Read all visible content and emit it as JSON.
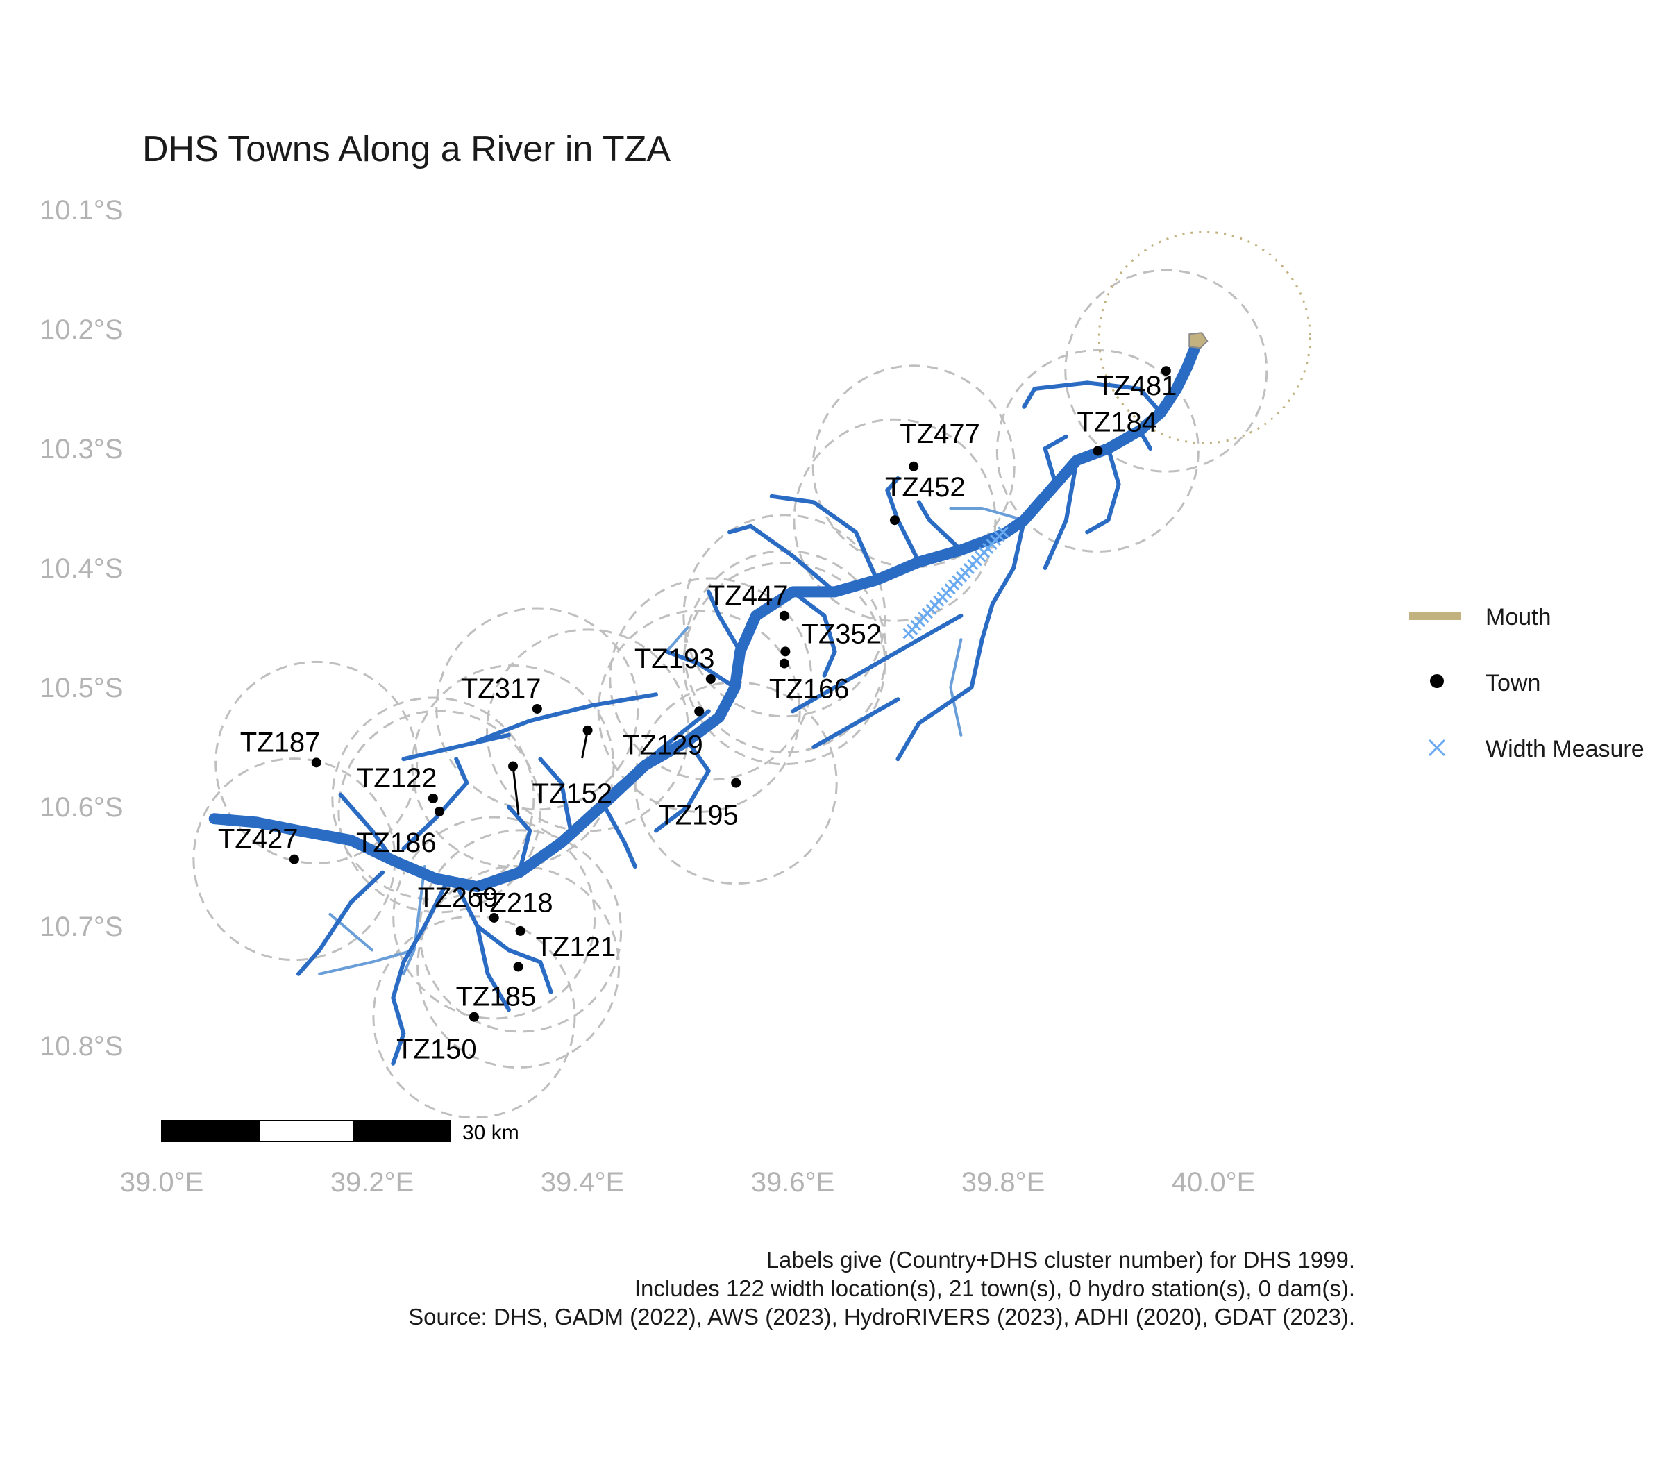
{
  "map": {
    "title": "DHS Towns Along a River in TZA",
    "lat_labels": [
      "10.1°S",
      "10.2°S",
      "10.3°S",
      "10.4°S",
      "10.5°S",
      "10.6°S",
      "10.7°S",
      "10.8°S"
    ],
    "lon_labels": [
      "39.0°E",
      "39.2°E",
      "39.4°E",
      "39.6°E",
      "39.8°E",
      "40.0°E"
    ],
    "scale_bar_label": "30 km",
    "legend": {
      "mouth": "Mouth",
      "town": "Town",
      "width": "Width Measure"
    },
    "caption_lines": [
      "Labels give (Country+DHS cluster number) for DHS 1999.",
      "Includes 122 width location(s), 21 town(s), 0 hydro station(s), 0 dam(s).",
      "Source: DHS, GADM (2022), AWS (2023), HydroRIVERS (2023), ADHI (2020), GDAT (2023)."
    ],
    "colors": {
      "river_main": "#2a6bc4",
      "river_trib": "#6a9ed8",
      "width_measure": "#6aaaf0",
      "mouth": "#c2b280",
      "town": "#000000",
      "buffer": "#bfbfbf",
      "axis_text": "#b3b3b3"
    }
  },
  "towns": [
    {
      "label": "TZ481",
      "lon": 39.955,
      "lat": -10.235
    },
    {
      "label": "TZ184",
      "lon": 39.89,
      "lat": -10.302
    },
    {
      "label": "TZ477",
      "lon": 39.715,
      "lat": -10.315
    },
    {
      "label": "TZ452",
      "lon": 39.697,
      "lat": -10.36
    },
    {
      "label": "TZ447",
      "lon": 39.592,
      "lat": -10.44
    },
    {
      "label": "TZ352",
      "lon": 39.593,
      "lat": -10.47
    },
    {
      "label": "TZ166",
      "lon": 39.592,
      "lat": -10.48
    },
    {
      "label": "TZ193",
      "lon": 39.522,
      "lat": -10.493
    },
    {
      "label": "TZ129",
      "lon": 39.511,
      "lat": -10.52
    },
    {
      "label": "TZ195",
      "lon": 39.546,
      "lat": -10.58
    },
    {
      "label": "TZ317",
      "lon": 39.357,
      "lat": -10.518
    },
    {
      "label": "TZ152",
      "lon": 39.405,
      "lat": -10.536
    },
    {
      "label": "TZ218",
      "lon": 39.334,
      "lat": -10.566
    },
    {
      "label": "TZ187",
      "lon": 39.147,
      "lat": -10.563
    },
    {
      "label": "TZ122",
      "lon": 39.258,
      "lat": -10.593
    },
    {
      "label": "TZ186",
      "lon": 39.264,
      "lat": -10.604
    },
    {
      "label": "TZ427",
      "lon": 39.126,
      "lat": -10.644
    },
    {
      "label": "TZ269",
      "lon": 39.316,
      "lat": -10.693
    },
    {
      "label": "TZ121",
      "lon": 39.341,
      "lat": -10.704
    },
    {
      "label": "TZ185",
      "lon": 39.339,
      "lat": -10.734
    },
    {
      "label": "TZ150",
      "lon": 39.297,
      "lat": -10.776
    }
  ],
  "rivers": {
    "main": [
      [
        39.05,
        -10.61
      ],
      [
        39.09,
        -10.613
      ],
      [
        39.13,
        -10.62
      ],
      [
        39.18,
        -10.628
      ],
      [
        39.22,
        -10.645
      ],
      [
        39.26,
        -10.66
      ],
      [
        39.3,
        -10.667
      ],
      [
        39.34,
        -10.655
      ],
      [
        39.38,
        -10.63
      ],
      [
        39.42,
        -10.598
      ],
      [
        39.46,
        -10.565
      ],
      [
        39.5,
        -10.545
      ],
      [
        39.53,
        -10.525
      ],
      [
        39.545,
        -10.5
      ],
      [
        39.55,
        -10.47
      ],
      [
        39.565,
        -10.44
      ],
      [
        39.6,
        -10.42
      ],
      [
        39.64,
        -10.42
      ],
      [
        39.68,
        -10.41
      ],
      [
        39.72,
        -10.395
      ],
      [
        39.76,
        -10.385
      ],
      [
        39.8,
        -10.372
      ],
      [
        39.82,
        -10.36
      ],
      [
        39.85,
        -10.33
      ],
      [
        39.87,
        -10.31
      ],
      [
        39.9,
        -10.3
      ],
      [
        39.93,
        -10.285
      ],
      [
        39.95,
        -10.27
      ],
      [
        39.965,
        -10.25
      ],
      [
        39.975,
        -10.232
      ],
      [
        39.985,
        -10.21
      ]
    ],
    "tributaries": [
      [
        [
          39.22,
          -10.645
        ],
        [
          39.2,
          -10.62
        ],
        [
          39.17,
          -10.59
        ]
      ],
      [
        [
          39.23,
          -10.635
        ],
        [
          39.26,
          -10.61
        ],
        [
          39.29,
          -10.58
        ],
        [
          39.28,
          -10.56
        ]
      ],
      [
        [
          39.28,
          -10.665
        ],
        [
          39.3,
          -10.7
        ],
        [
          39.33,
          -10.72
        ],
        [
          39.36,
          -10.73
        ],
        [
          39.37,
          -10.755
        ]
      ],
      [
        [
          39.27,
          -10.665
        ],
        [
          39.25,
          -10.7
        ],
        [
          39.23,
          -10.73
        ],
        [
          39.22,
          -10.76
        ],
        [
          39.23,
          -10.79
        ],
        [
          39.22,
          -10.815
        ]
      ],
      [
        [
          39.21,
          -10.655
        ],
        [
          39.18,
          -10.68
        ],
        [
          39.15,
          -10.72
        ],
        [
          39.13,
          -10.74
        ]
      ],
      [
        [
          39.3,
          -10.7
        ],
        [
          39.31,
          -10.74
        ],
        [
          39.33,
          -10.77
        ]
      ],
      [
        [
          39.34,
          -10.655
        ],
        [
          39.35,
          -10.62
        ],
        [
          39.33,
          -10.6
        ]
      ],
      [
        [
          39.39,
          -10.625
        ],
        [
          39.38,
          -10.58
        ],
        [
          39.36,
          -10.56
        ]
      ],
      [
        [
          39.42,
          -10.598
        ],
        [
          39.44,
          -10.63
        ],
        [
          39.45,
          -10.65
        ]
      ],
      [
        [
          39.3,
          -10.545
        ],
        [
          39.35,
          -10.528
        ],
        [
          39.41,
          -10.515
        ],
        [
          39.47,
          -10.506
        ]
      ],
      [
        [
          39.23,
          -10.56
        ],
        [
          39.28,
          -10.55
        ],
        [
          39.33,
          -10.54
        ]
      ],
      [
        [
          39.43,
          -10.585
        ],
        [
          39.47,
          -10.555
        ],
        [
          39.52,
          -10.52
        ]
      ],
      [
        [
          39.545,
          -10.5
        ],
        [
          39.51,
          -10.48
        ],
        [
          39.48,
          -10.47
        ]
      ],
      [
        [
          39.55,
          -10.47
        ],
        [
          39.53,
          -10.44
        ],
        [
          39.52,
          -10.42
        ]
      ],
      [
        [
          39.5,
          -10.545
        ],
        [
          39.52,
          -10.57
        ],
        [
          39.5,
          -10.6
        ],
        [
          39.47,
          -10.62
        ]
      ],
      [
        [
          39.6,
          -10.42
        ],
        [
          39.63,
          -10.44
        ],
        [
          39.64,
          -10.47
        ],
        [
          39.63,
          -10.49
        ]
      ],
      [
        [
          39.6,
          -10.52
        ],
        [
          39.64,
          -10.5
        ],
        [
          39.68,
          -10.48
        ],
        [
          39.72,
          -10.46
        ],
        [
          39.76,
          -10.44
        ]
      ],
      [
        [
          39.62,
          -10.55
        ],
        [
          39.66,
          -10.53
        ],
        [
          39.7,
          -10.51
        ]
      ],
      [
        [
          39.64,
          -10.42
        ],
        [
          39.6,
          -10.39
        ],
        [
          39.56,
          -10.365
        ],
        [
          39.54,
          -10.37
        ]
      ],
      [
        [
          39.68,
          -10.41
        ],
        [
          39.66,
          -10.37
        ],
        [
          39.62,
          -10.345
        ],
        [
          39.58,
          -10.34
        ]
      ],
      [
        [
          39.72,
          -10.395
        ],
        [
          39.7,
          -10.36
        ],
        [
          39.69,
          -10.335
        ],
        [
          39.7,
          -10.325
        ]
      ],
      [
        [
          39.76,
          -10.385
        ],
        [
          39.73,
          -10.36
        ],
        [
          39.72,
          -10.345
        ]
      ],
      [
        [
          39.82,
          -10.36
        ],
        [
          39.81,
          -10.4
        ],
        [
          39.79,
          -10.43
        ],
        [
          39.78,
          -10.46
        ],
        [
          39.77,
          -10.5
        ],
        [
          39.72,
          -10.53
        ],
        [
          39.7,
          -10.56
        ]
      ],
      [
        [
          39.85,
          -10.33
        ],
        [
          39.84,
          -10.3
        ],
        [
          39.86,
          -10.29
        ]
      ],
      [
        [
          39.87,
          -10.31
        ],
        [
          39.86,
          -10.36
        ],
        [
          39.84,
          -10.4
        ]
      ],
      [
        [
          39.9,
          -10.3
        ],
        [
          39.91,
          -10.33
        ],
        [
          39.9,
          -10.36
        ],
        [
          39.88,
          -10.37
        ]
      ],
      [
        [
          39.93,
          -10.285
        ],
        [
          39.94,
          -10.3
        ]
      ],
      [
        [
          39.95,
          -10.27
        ],
        [
          39.93,
          -10.25
        ],
        [
          39.88,
          -10.245
        ],
        [
          39.83,
          -10.25
        ],
        [
          39.82,
          -10.265
        ]
      ]
    ],
    "minor": [
      [
        [
          39.25,
          -10.65
        ],
        [
          39.24,
          -10.72
        ],
        [
          39.23,
          -10.74
        ]
      ],
      [
        [
          39.15,
          -10.74
        ],
        [
          39.2,
          -10.73
        ],
        [
          39.24,
          -10.72
        ]
      ],
      [
        [
          39.16,
          -10.69
        ],
        [
          39.2,
          -10.72
        ]
      ],
      [
        [
          39.48,
          -10.47
        ],
        [
          39.5,
          -10.45
        ]
      ],
      [
        [
          39.76,
          -10.46
        ],
        [
          39.75,
          -10.5
        ],
        [
          39.76,
          -10.54
        ]
      ],
      [
        [
          39.82,
          -10.36
        ],
        [
          39.78,
          -10.35
        ],
        [
          39.75,
          -10.35
        ]
      ]
    ]
  }
}
